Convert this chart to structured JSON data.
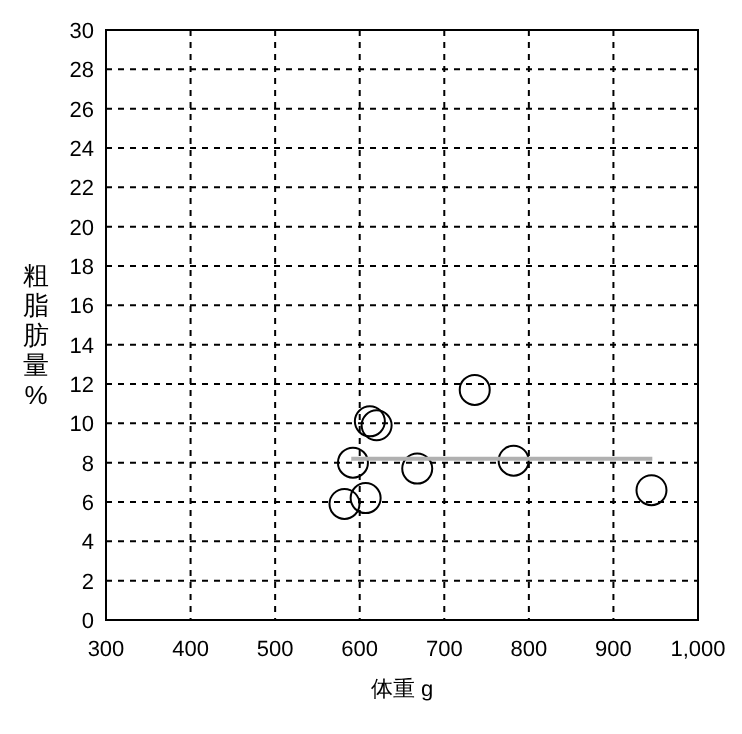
{
  "chart_data": {
    "type": "scatter",
    "xlabel": "体重 g",
    "ylabel": "粗脂肪量%",
    "xlim": [
      300,
      1000
    ],
    "xticks": [
      300,
      400,
      500,
      600,
      700,
      800,
      900,
      {
        "value": 1000,
        "label": "1,000"
      }
    ],
    "ylim": [
      0,
      30
    ],
    "yticks": [
      0,
      2,
      4,
      6,
      8,
      10,
      12,
      14,
      16,
      18,
      20,
      22,
      24,
      26,
      28,
      30
    ],
    "grid": true,
    "marker": "circle",
    "series": [
      {
        "type": "scatter",
        "color": "#000000",
        "x": [
          736,
          612,
          620,
          592,
          668,
          782,
          582,
          607,
          945
        ],
        "values": [
          11.7,
          10.1,
          9.9,
          8.0,
          7.7,
          8.1,
          5.9,
          6.2,
          6.6
        ]
      },
      {
        "type": "line",
        "marker": "none",
        "color": "#b0b0b0",
        "x": [
          590,
          946
        ],
        "values": [
          8.2,
          8.2
        ]
      }
    ]
  }
}
